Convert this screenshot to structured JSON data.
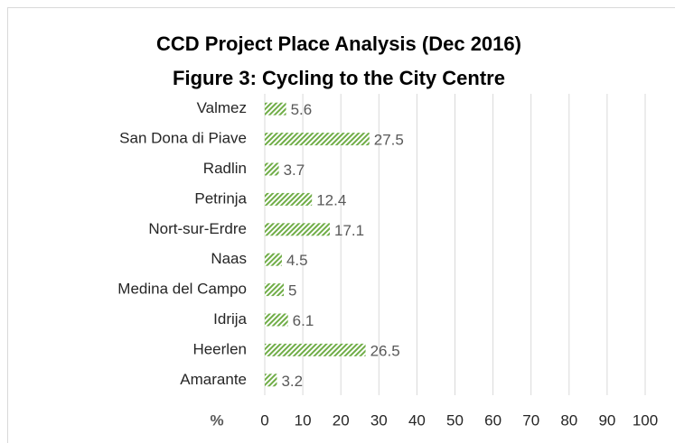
{
  "chart_data": {
    "type": "bar",
    "orientation": "horizontal",
    "title": "CCD Project Place Analysis (Dec 2016)",
    "subtitle": "Figure 3: Cycling to the City Centre",
    "x_label": "%",
    "categories": [
      "Valmez",
      "San Dona di Piave",
      "Radlin",
      "Petrinja",
      "Nort-sur-Erdre",
      "Naas",
      "Medina del Campo",
      "Idrija",
      "Heerlen",
      "Amarante"
    ],
    "values": [
      5.6,
      27.5,
      3.7,
      12.4,
      17.1,
      4.5,
      5,
      6.1,
      26.5,
      3.2
    ],
    "color": "#70ad47",
    "xlim": [
      0,
      100
    ],
    "xticks": [
      0,
      10,
      20,
      30,
      40,
      50,
      60,
      70,
      80,
      90,
      100
    ],
    "grid": true
  }
}
